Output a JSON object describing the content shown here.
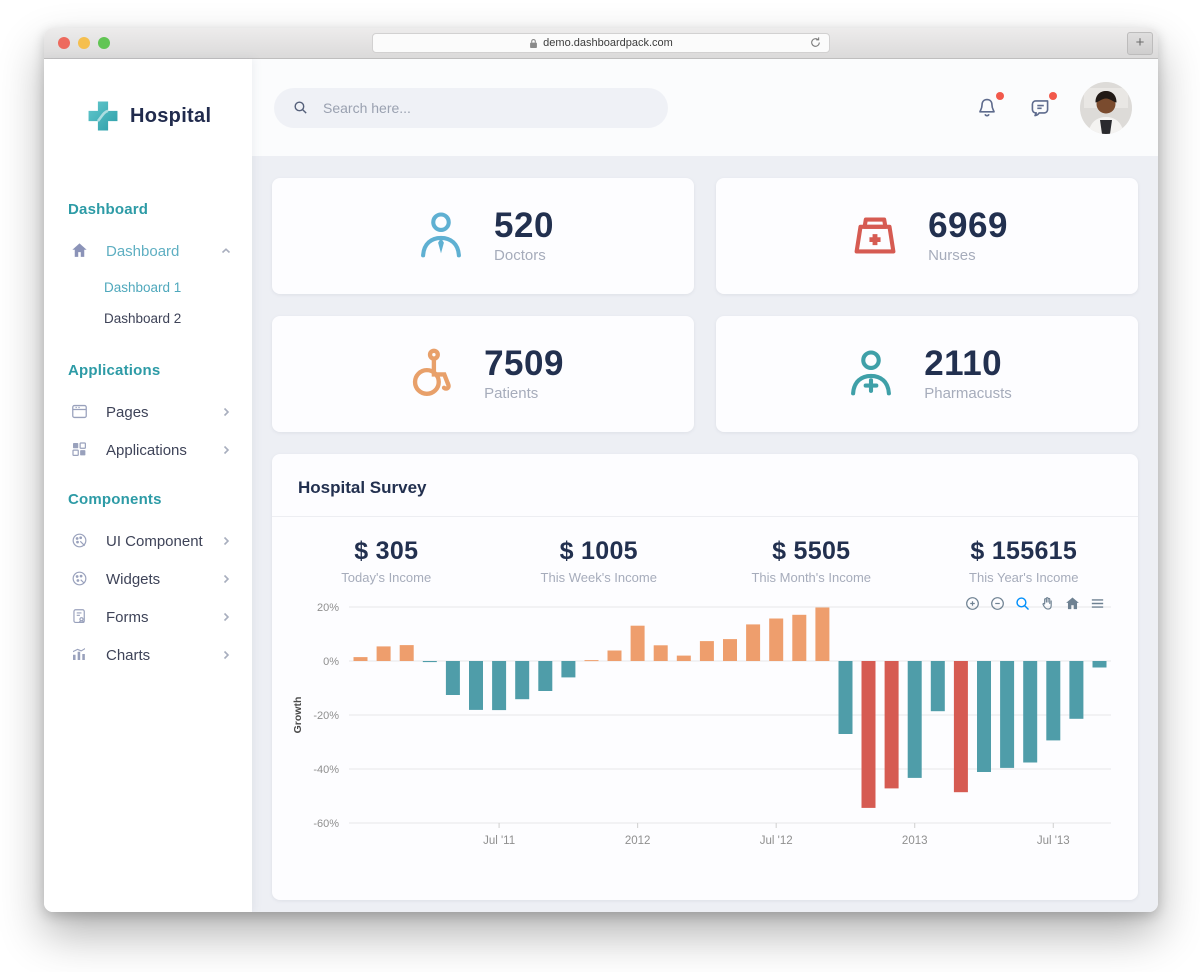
{
  "browser": {
    "url": "demo.dashboardpack.com",
    "new_tab_label": "+"
  },
  "sidebar": {
    "logo_text": "Hospital",
    "sections": [
      {
        "header": "Dashboard",
        "items": [
          {
            "label": "Dashboard",
            "icon": "home-icon",
            "active": true,
            "expanded": true,
            "children": [
              {
                "label": "Dashboard 1",
                "active": true
              },
              {
                "label": "Dashboard 2",
                "active": false
              }
            ]
          }
        ]
      },
      {
        "header": "Applications",
        "items": [
          {
            "label": "Pages",
            "icon": "pages-icon"
          },
          {
            "label": "Applications",
            "icon": "apps-icon"
          }
        ]
      },
      {
        "header": "Components",
        "items": [
          {
            "label": "UI Component",
            "icon": "ui-component-icon"
          },
          {
            "label": "Widgets",
            "icon": "widgets-icon"
          },
          {
            "label": "Forms",
            "icon": "forms-icon"
          },
          {
            "label": "Charts",
            "icon": "charts-icon"
          }
        ]
      }
    ]
  },
  "topbar": {
    "search_placeholder": "Search here...",
    "notification_badge": true,
    "message_badge": true
  },
  "stat_cards": [
    {
      "value": "520",
      "label": "Doctors",
      "icon": "doctor-icon",
      "color": "#5FB0D2"
    },
    {
      "value": "6969",
      "label": "Nurses",
      "icon": "nurse-icon",
      "color": "#D65B52"
    },
    {
      "value": "7509",
      "label": "Patients",
      "icon": "wheelchair-icon",
      "color": "#E8A06A"
    },
    {
      "value": "2110",
      "label": "Pharmacusts",
      "icon": "pharmacist-icon",
      "color": "#3FA0A8"
    }
  ],
  "survey": {
    "title": "Hospital Survey",
    "income_stats": [
      {
        "value": "$ 305",
        "label": "Today's Income"
      },
      {
        "value": "$ 1005",
        "label": "This Week's Income"
      },
      {
        "value": "$ 5505",
        "label": "This Month's Income"
      },
      {
        "value": "$ 155615",
        "label": "This Year's Income"
      }
    ]
  },
  "chart_data": {
    "type": "bar",
    "title": "",
    "xlabel": "",
    "ylabel": "Growth",
    "ylim": [
      -60,
      20
    ],
    "y_ticks": [
      20,
      0,
      -20,
      -40,
      -60
    ],
    "y_tick_suffix": "%",
    "grid": true,
    "legend_position": "none",
    "months": [
      "2011-01",
      "2011-02",
      "2011-03",
      "2011-04",
      "2011-05",
      "2011-06",
      "2011-07",
      "2011-08",
      "2011-09",
      "2011-10",
      "2011-11",
      "2011-12",
      "2012-01",
      "2012-02",
      "2012-03",
      "2012-04",
      "2012-05",
      "2012-06",
      "2012-07",
      "2012-08",
      "2012-09",
      "2012-10",
      "2012-11",
      "2012-12",
      "2013-01",
      "2013-02",
      "2013-03",
      "2013-04",
      "2013-05",
      "2013-06",
      "2013-07",
      "2013-08",
      "2013-09"
    ],
    "values": [
      1.45,
      5.42,
      5.9,
      -0.42,
      -12.6,
      -18.1,
      -18.2,
      -14.16,
      -11.1,
      -6.09,
      0.34,
      3.88,
      13.07,
      5.8,
      2,
      7.37,
      8.1,
      13.57,
      15.75,
      17.1,
      19.8,
      -27.03,
      -54.4,
      -47.2,
      -43.3,
      -18.6,
      -48.6,
      -41.1,
      -39.6,
      -37.6,
      -29.4,
      -21.4,
      -2.4
    ],
    "x_ticks": [
      {
        "index": 6,
        "label": "Jul '11"
      },
      {
        "index": 12,
        "label": "2012"
      },
      {
        "index": 18,
        "label": "Jul '12"
      },
      {
        "index": 24,
        "label": "2013"
      },
      {
        "index": 30,
        "label": "Jul '13"
      }
    ],
    "colors": {
      "positive": "#EE9E6D",
      "negative": "#4F9DA9",
      "deep_negative": "#D65B52",
      "deep_negative_threshold": -45
    },
    "toolbar": [
      "zoom-in",
      "zoom-out",
      "selection-zoom",
      "pan",
      "reset-home",
      "menu"
    ]
  }
}
